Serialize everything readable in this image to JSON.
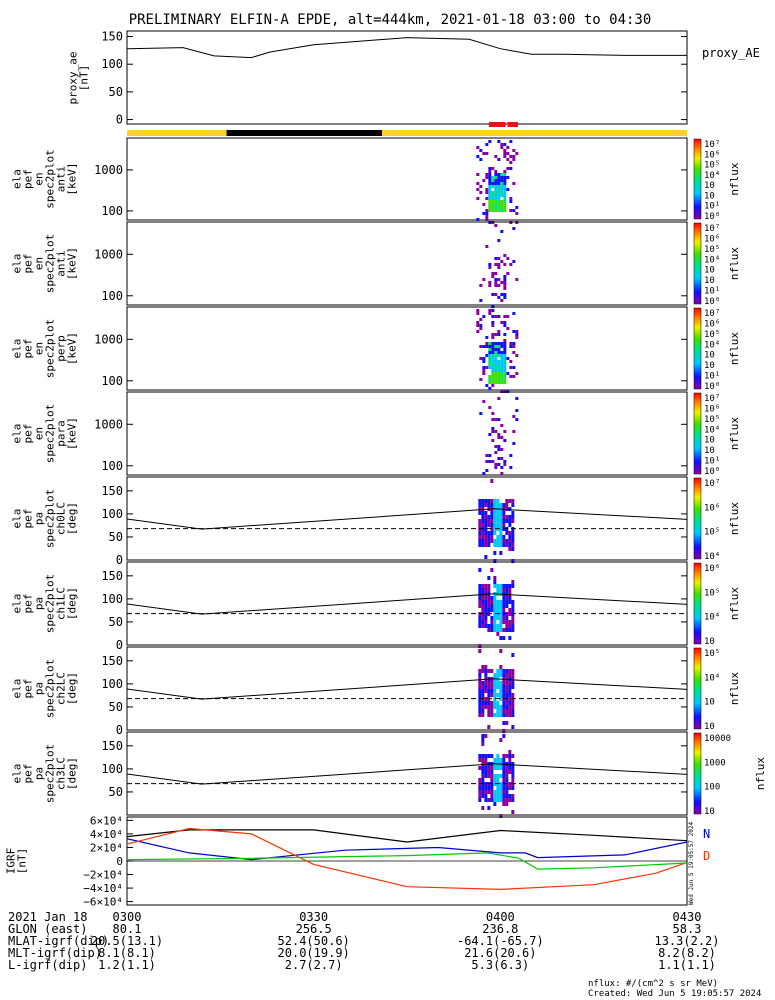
{
  "title": "PRELIMINARY ELFIN-A EPDE, alt=444km, 2021-01-18 03:00 to 04:30",
  "top_panel": {
    "ylabel": [
      "proxy_ae",
      "[nT]"
    ],
    "legend": "proxy_AE",
    "yticks": [
      "150",
      "100",
      "50",
      "0"
    ]
  },
  "spec_panels": [
    {
      "ylabel": [
        "ela",
        "pef",
        "en",
        "spec2plot",
        "anti",
        "[keV]"
      ],
      "yticks": [
        "1000",
        "100"
      ],
      "cbar_ticks": [
        "10⁷",
        "10⁶",
        "10⁵",
        "10⁴",
        "10⁳",
        "10⁲",
        "10¹",
        "10⁰"
      ],
      "cbar_label": "nflux"
    },
    {
      "ylabel": [
        "ela",
        "pef",
        "en",
        "spec2plot",
        "anti",
        "[keV]"
      ],
      "yticks": [
        "1000",
        "100"
      ],
      "cbar_ticks": [
        "10⁷",
        "10⁶",
        "10⁵",
        "10⁴",
        "10⁳",
        "10⁲",
        "10¹",
        "10⁰"
      ],
      "cbar_label": "nflux"
    },
    {
      "ylabel": [
        "ela",
        "pef",
        "en",
        "spec2plot",
        "perp",
        "[keV]"
      ],
      "yticks": [
        "1000",
        "100"
      ],
      "cbar_ticks": [
        "10⁷",
        "10⁶",
        "10⁵",
        "10⁴",
        "10⁳",
        "10⁲",
        "10¹",
        "10⁰"
      ],
      "cbar_label": "nflux"
    },
    {
      "ylabel": [
        "ela",
        "pef",
        "en",
        "spec2plot",
        "para",
        "[keV]"
      ],
      "yticks": [
        "1000",
        "100"
      ],
      "cbar_ticks": [
        "10⁷",
        "10⁶",
        "10⁵",
        "10⁴",
        "10⁳",
        "10⁲",
        "10¹",
        "10⁰"
      ],
      "cbar_label": "nflux"
    },
    {
      "ylabel": [
        "ela",
        "pef",
        "pa",
        "spec2plot",
        "ch0LC",
        "[deg]"
      ],
      "yticks": [
        "150",
        "100",
        "50",
        "0"
      ],
      "cbar_ticks": [
        "10⁷",
        "10⁶",
        "10⁵",
        "10⁴"
      ],
      "cbar_label": "nflux"
    },
    {
      "ylabel": [
        "ela",
        "pef",
        "pa",
        "spec2plot",
        "ch1LC",
        "[deg]"
      ],
      "yticks": [
        "150",
        "100",
        "50",
        "0"
      ],
      "cbar_ticks": [
        "10⁶",
        "10⁵",
        "10⁴",
        "10⁳"
      ],
      "cbar_label": "nflux"
    },
    {
      "ylabel": [
        "ela",
        "pef",
        "pa",
        "spec2plot",
        "ch2LC",
        "[deg]"
      ],
      "yticks": [
        "150",
        "100",
        "50",
        "0"
      ],
      "cbar_ticks": [
        "10⁵",
        "10⁴",
        "10⁳",
        "10⁲"
      ],
      "cbar_label": "nflux"
    },
    {
      "ylabel": [
        "ela",
        "pef",
        "pa",
        "spec2plot",
        "ch3LC",
        "[deg]"
      ],
      "yticks": [
        "150",
        "100",
        "50"
      ],
      "cbar_ticks": [
        "10000",
        "1000",
        "100",
        "10"
      ],
      "cbar_label": "nflux"
    }
  ],
  "igrf_panel": {
    "ylabel": [
      "IGRF",
      "[nT]"
    ],
    "yticks": [
      "6×10⁴",
      "4×10⁴",
      "2×10⁴",
      "0",
      "−2×10⁴",
      "−4×10⁴",
      "−6×10⁴"
    ],
    "legend": [
      {
        "label": "N",
        "color": "#0000cc"
      },
      {
        "label": "D",
        "color": "#ff3300"
      }
    ],
    "side_stamp": "Wed Jun  5 19:05:57 2024"
  },
  "footer": {
    "rows": [
      {
        "label": "2021 Jan 18",
        "values": [
          "0300",
          "0330",
          "0400",
          "0430"
        ]
      },
      {
        "label": "GLON (east)",
        "values": [
          "80.1",
          "256.5",
          "236.8",
          "58.3"
        ]
      },
      {
        "label": "MLAT-igrf(dip)",
        "values": [
          "20.5(13.1)",
          "52.4(50.6)",
          "-64.1(-65.7)",
          "13.3(2.2)"
        ]
      },
      {
        "label": "MLT-igrf(dip)",
        "values": [
          "8.1(8.1)",
          "20.0(19.9)",
          "21.6(20.6)",
          "8.2(8.2)"
        ]
      },
      {
        "label": "L-igrf(dip)",
        "values": [
          "1.2(1.1)",
          "2.7(2.7)",
          "5.3(6.3)",
          "1.1(1.1)"
        ]
      }
    ],
    "units": "nflux: #/(cm^2 s sr MeV)",
    "created": "Created: Wed Jun  5 19:05:57 2024"
  },
  "chart_data": {
    "type": "line",
    "time_range": [
      "03:00",
      "04:30"
    ],
    "proxy_ae": {
      "name": "proxy_AE",
      "x": [
        "03:00",
        "03:09",
        "03:14",
        "03:20",
        "03:23",
        "03:30",
        "03:45",
        "03:55",
        "04:00",
        "04:05",
        "04:10",
        "04:20",
        "04:30"
      ],
      "y": [
        128,
        130,
        115,
        112,
        122,
        135,
        148,
        145,
        128,
        118,
        118,
        116,
        116
      ],
      "ylim": [
        0,
        160
      ]
    },
    "status_bar": [
      {
        "from": "03:00",
        "to": "03:16",
        "color": "#ffd21f"
      },
      {
        "from": "03:16",
        "to": "03:41",
        "color": "#000000"
      },
      {
        "from": "03:41",
        "to": "04:30",
        "color": "#ffd21f"
      }
    ],
    "science_zones": [
      [
        "03:58",
        "04:01"
      ],
      [
        "04:01",
        "04:03"
      ]
    ],
    "energy_ylim": [
      60,
      6000
    ],
    "pa_ylim": [
      0,
      180
    ],
    "loss_cone_solid": {
      "x": [
        "03:00",
        "03:12",
        "03:59",
        "04:30"
      ],
      "y": [
        89,
        67,
        111,
        88
      ]
    },
    "loss_cone_dashed_deg": 68,
    "igrf": {
      "ylim": [
        -65000,
        65000
      ],
      "series": [
        {
          "name": "",
          "color": "#000000",
          "x": [
            "03:00",
            "03:10",
            "03:30",
            "03:45",
            "04:00",
            "04:15",
            "04:30"
          ],
          "y": [
            36000,
            46000,
            46000,
            28000,
            45000,
            38000,
            30000
          ]
        },
        {
          "name": "N",
          "color": "#0000cc",
          "x": [
            "03:00",
            "03:10",
            "03:20",
            "03:35",
            "03:50",
            "04:00",
            "04:04",
            "04:06",
            "04:20",
            "04:30"
          ],
          "y": [
            33000,
            12000,
            2000,
            16000,
            20000,
            12000,
            12000,
            5000,
            9000,
            28000
          ]
        },
        {
          "name": "D",
          "color": "#ff3300",
          "x": [
            "03:00",
            "03:10",
            "03:20",
            "03:30",
            "03:45",
            "04:00",
            "04:15",
            "04:25",
            "04:30"
          ],
          "y": [
            25000,
            48000,
            40000,
            -5000,
            -38000,
            -42000,
            -35000,
            -18000,
            -2000
          ]
        },
        {
          "name": "",
          "color": "#00cc00",
          "x": [
            "03:00",
            "03:20",
            "03:45",
            "03:58",
            "04:03",
            "04:06",
            "04:15",
            "04:30"
          ],
          "y": [
            2000,
            4000,
            8000,
            12000,
            4000,
            -12000,
            -10000,
            -3000
          ]
        }
      ]
    }
  }
}
